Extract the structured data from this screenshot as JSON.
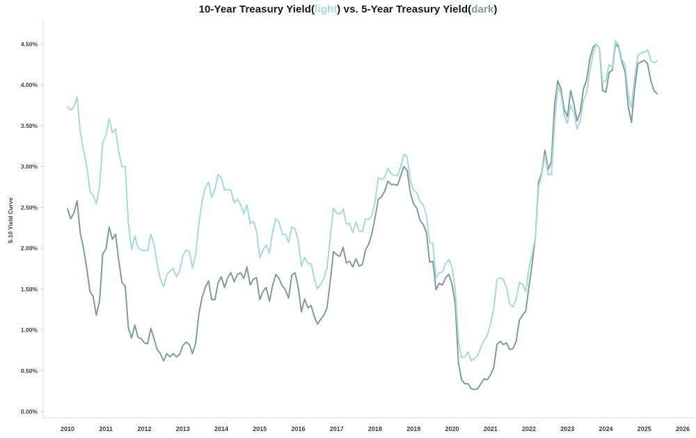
{
  "title": {
    "part1": "10-Year Treasury Yield(",
    "light_word": "light",
    "part2": ") vs. 5-Year Treasury Yield(",
    "dark_word": "dark",
    "part3": ")"
  },
  "colors": {
    "light_series": "#a5dbd7",
    "dark_series": "#7d9c9a",
    "title_text": "#14141f",
    "tick_text": "#383d44",
    "axis_line": "#d8d8d8"
  },
  "chart_data": {
    "type": "line",
    "title": "10-Year Treasury Yield(light) vs. 5-Year Treasury Yield(dark)",
    "xlabel": "",
    "ylabel": "5-10 Yield Curve",
    "x_frequency": "monthly",
    "x_start": {
      "year": 2010,
      "month": 1
    },
    "x_end": {
      "year": 2025,
      "month": 5
    },
    "xlim": [
      2009.4,
      2026.3
    ],
    "ylim": [
      0,
      4.75
    ],
    "grid": false,
    "legend": "none (series identified by color words in title)",
    "x_tick_years": [
      2010,
      2011,
      2012,
      2013,
      2014,
      2015,
      2016,
      2017,
      2018,
      2019,
      2020,
      2021,
      2022,
      2023,
      2024,
      2025,
      2026
    ],
    "y_tick_step": 0.5,
    "y_tick_labels": [
      "0.00%",
      "0.50%",
      "1.00%",
      "1.50%",
      "2.00%",
      "2.50%",
      "3.00%",
      "3.50%",
      "4.00%",
      "4.50%"
    ],
    "series": [
      {
        "name": "10-Year Treasury Yield",
        "style": "light",
        "color": "#a5dbd7",
        "values": [
          3.73,
          3.69,
          3.73,
          3.85,
          3.42,
          3.2,
          3.01,
          2.7,
          2.65,
          2.54,
          2.76,
          3.29,
          3.39,
          3.58,
          3.41,
          3.46,
          3.17,
          3.0,
          3.0,
          2.3,
          1.98,
          2.15,
          2.01,
          1.98,
          1.97,
          1.97,
          2.17,
          2.05,
          1.8,
          1.62,
          1.53,
          1.68,
          1.72,
          1.75,
          1.65,
          1.72,
          1.91,
          1.98,
          1.96,
          1.76,
          1.93,
          2.3,
          2.58,
          2.74,
          2.81,
          2.62,
          2.72,
          2.9,
          2.86,
          2.71,
          2.72,
          2.71,
          2.56,
          2.6,
          2.54,
          2.42,
          2.53,
          2.3,
          2.33,
          2.21,
          1.88,
          1.98,
          2.04,
          1.94,
          2.2,
          2.36,
          2.32,
          2.17,
          2.17,
          2.07,
          2.26,
          2.24,
          2.09,
          1.78,
          1.89,
          1.81,
          1.81,
          1.64,
          1.5,
          1.56,
          1.63,
          1.76,
          2.14,
          2.49,
          2.43,
          2.42,
          2.48,
          2.3,
          2.3,
          2.19,
          2.32,
          2.21,
          2.2,
          2.36,
          2.35,
          2.4,
          2.58,
          2.86,
          2.84,
          2.87,
          2.98,
          2.91,
          2.89,
          2.89,
          3.0,
          3.15,
          3.12,
          2.83,
          2.71,
          2.68,
          2.57,
          2.53,
          2.4,
          2.07,
          2.06,
          1.63,
          1.7,
          1.71,
          1.81,
          1.86,
          1.76,
          1.5,
          0.87,
          0.66,
          0.67,
          0.73,
          0.62,
          0.65,
          0.68,
          0.79,
          0.87,
          0.93,
          1.08,
          1.26,
          1.61,
          1.64,
          1.62,
          1.52,
          1.32,
          1.28,
          1.37,
          1.58,
          1.56,
          1.47,
          1.76,
          1.93,
          2.13,
          2.75,
          2.9,
          3.14,
          2.9,
          2.9,
          3.52,
          3.98,
          3.89,
          3.62,
          3.53,
          3.75,
          3.66,
          3.46,
          3.57,
          3.81,
          3.9,
          4.17,
          4.38,
          4.5,
          4.45,
          4.02,
          4.06,
          4.25,
          4.21,
          4.54,
          4.48,
          4.31,
          4.25,
          3.87,
          3.72,
          4.1,
          4.36,
          4.39,
          4.4,
          4.43,
          4.3,
          4.27,
          4.29
        ]
      },
      {
        "name": "5-Year Treasury Yield",
        "style": "dark",
        "color": "#7d9c9a",
        "values": [
          2.48,
          2.36,
          2.43,
          2.58,
          2.18,
          2.0,
          1.76,
          1.47,
          1.41,
          1.18,
          1.35,
          1.93,
          1.99,
          2.26,
          2.11,
          2.17,
          1.84,
          1.58,
          1.54,
          1.02,
          0.9,
          1.06,
          0.91,
          0.89,
          0.84,
          0.83,
          1.02,
          0.89,
          0.76,
          0.71,
          0.62,
          0.71,
          0.67,
          0.71,
          0.67,
          0.7,
          0.81,
          0.85,
          0.82,
          0.71,
          0.84,
          1.2,
          1.4,
          1.52,
          1.6,
          1.37,
          1.37,
          1.58,
          1.65,
          1.52,
          1.64,
          1.7,
          1.59,
          1.68,
          1.7,
          1.63,
          1.77,
          1.55,
          1.62,
          1.64,
          1.37,
          1.47,
          1.52,
          1.35,
          1.54,
          1.68,
          1.63,
          1.54,
          1.49,
          1.39,
          1.67,
          1.7,
          1.52,
          1.22,
          1.38,
          1.27,
          1.3,
          1.17,
          1.07,
          1.13,
          1.18,
          1.27,
          1.6,
          1.96,
          1.92,
          1.9,
          2.01,
          1.82,
          1.84,
          1.77,
          1.87,
          1.78,
          1.8,
          1.98,
          2.05,
          2.18,
          2.38,
          2.6,
          2.63,
          2.7,
          2.82,
          2.78,
          2.78,
          2.77,
          2.89,
          3.0,
          2.95,
          2.68,
          2.54,
          2.49,
          2.34,
          2.29,
          2.19,
          1.83,
          1.84,
          1.49,
          1.57,
          1.55,
          1.64,
          1.68,
          1.56,
          1.32,
          0.59,
          0.39,
          0.34,
          0.34,
          0.28,
          0.27,
          0.28,
          0.34,
          0.4,
          0.39,
          0.45,
          0.54,
          0.82,
          0.86,
          0.82,
          0.84,
          0.76,
          0.77,
          0.86,
          1.12,
          1.18,
          1.23,
          1.53,
          1.81,
          2.13,
          2.81,
          2.92,
          3.2,
          2.96,
          3.06,
          3.75,
          4.05,
          3.95,
          3.7,
          3.61,
          3.93,
          3.77,
          3.56,
          3.67,
          3.95,
          4.06,
          4.32,
          4.46,
          4.5,
          4.45,
          3.93,
          3.91,
          4.15,
          4.18,
          4.5,
          4.46,
          4.28,
          4.16,
          3.73,
          3.54,
          3.96,
          4.26,
          4.28,
          4.3,
          4.26,
          4.05,
          3.93,
          3.89
        ]
      }
    ]
  }
}
